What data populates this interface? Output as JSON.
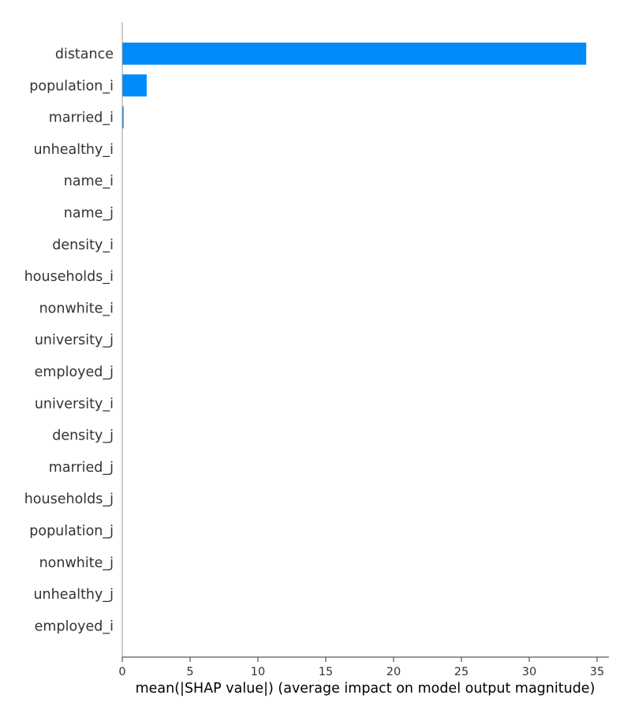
{
  "chart_data": {
    "type": "bar",
    "orientation": "horizontal",
    "title": "",
    "xlabel": "mean(|SHAP value|) (average impact on model output magnitude)",
    "ylabel": "",
    "xlim": [
      0,
      36
    ],
    "xticks": [
      0,
      5,
      10,
      15,
      20,
      25,
      30,
      35
    ],
    "grid": false,
    "legend": "none",
    "bar_color": "#008bfb",
    "categories": [
      "distance",
      "population_i",
      "married_i",
      "unhealthy_i",
      "name_i",
      "name_j",
      "density_i",
      "households_i",
      "nonwhite_i",
      "university_j",
      "employed_j",
      "university_i",
      "density_j",
      "married_j",
      "households_j",
      "population_j",
      "nonwhite_j",
      "unhealthy_j",
      "employed_i"
    ],
    "values": [
      34.2,
      1.8,
      0.1,
      0.01,
      0.01,
      0.01,
      0,
      0,
      0,
      0,
      0,
      0,
      0,
      0,
      0,
      0,
      0,
      0,
      0
    ]
  }
}
